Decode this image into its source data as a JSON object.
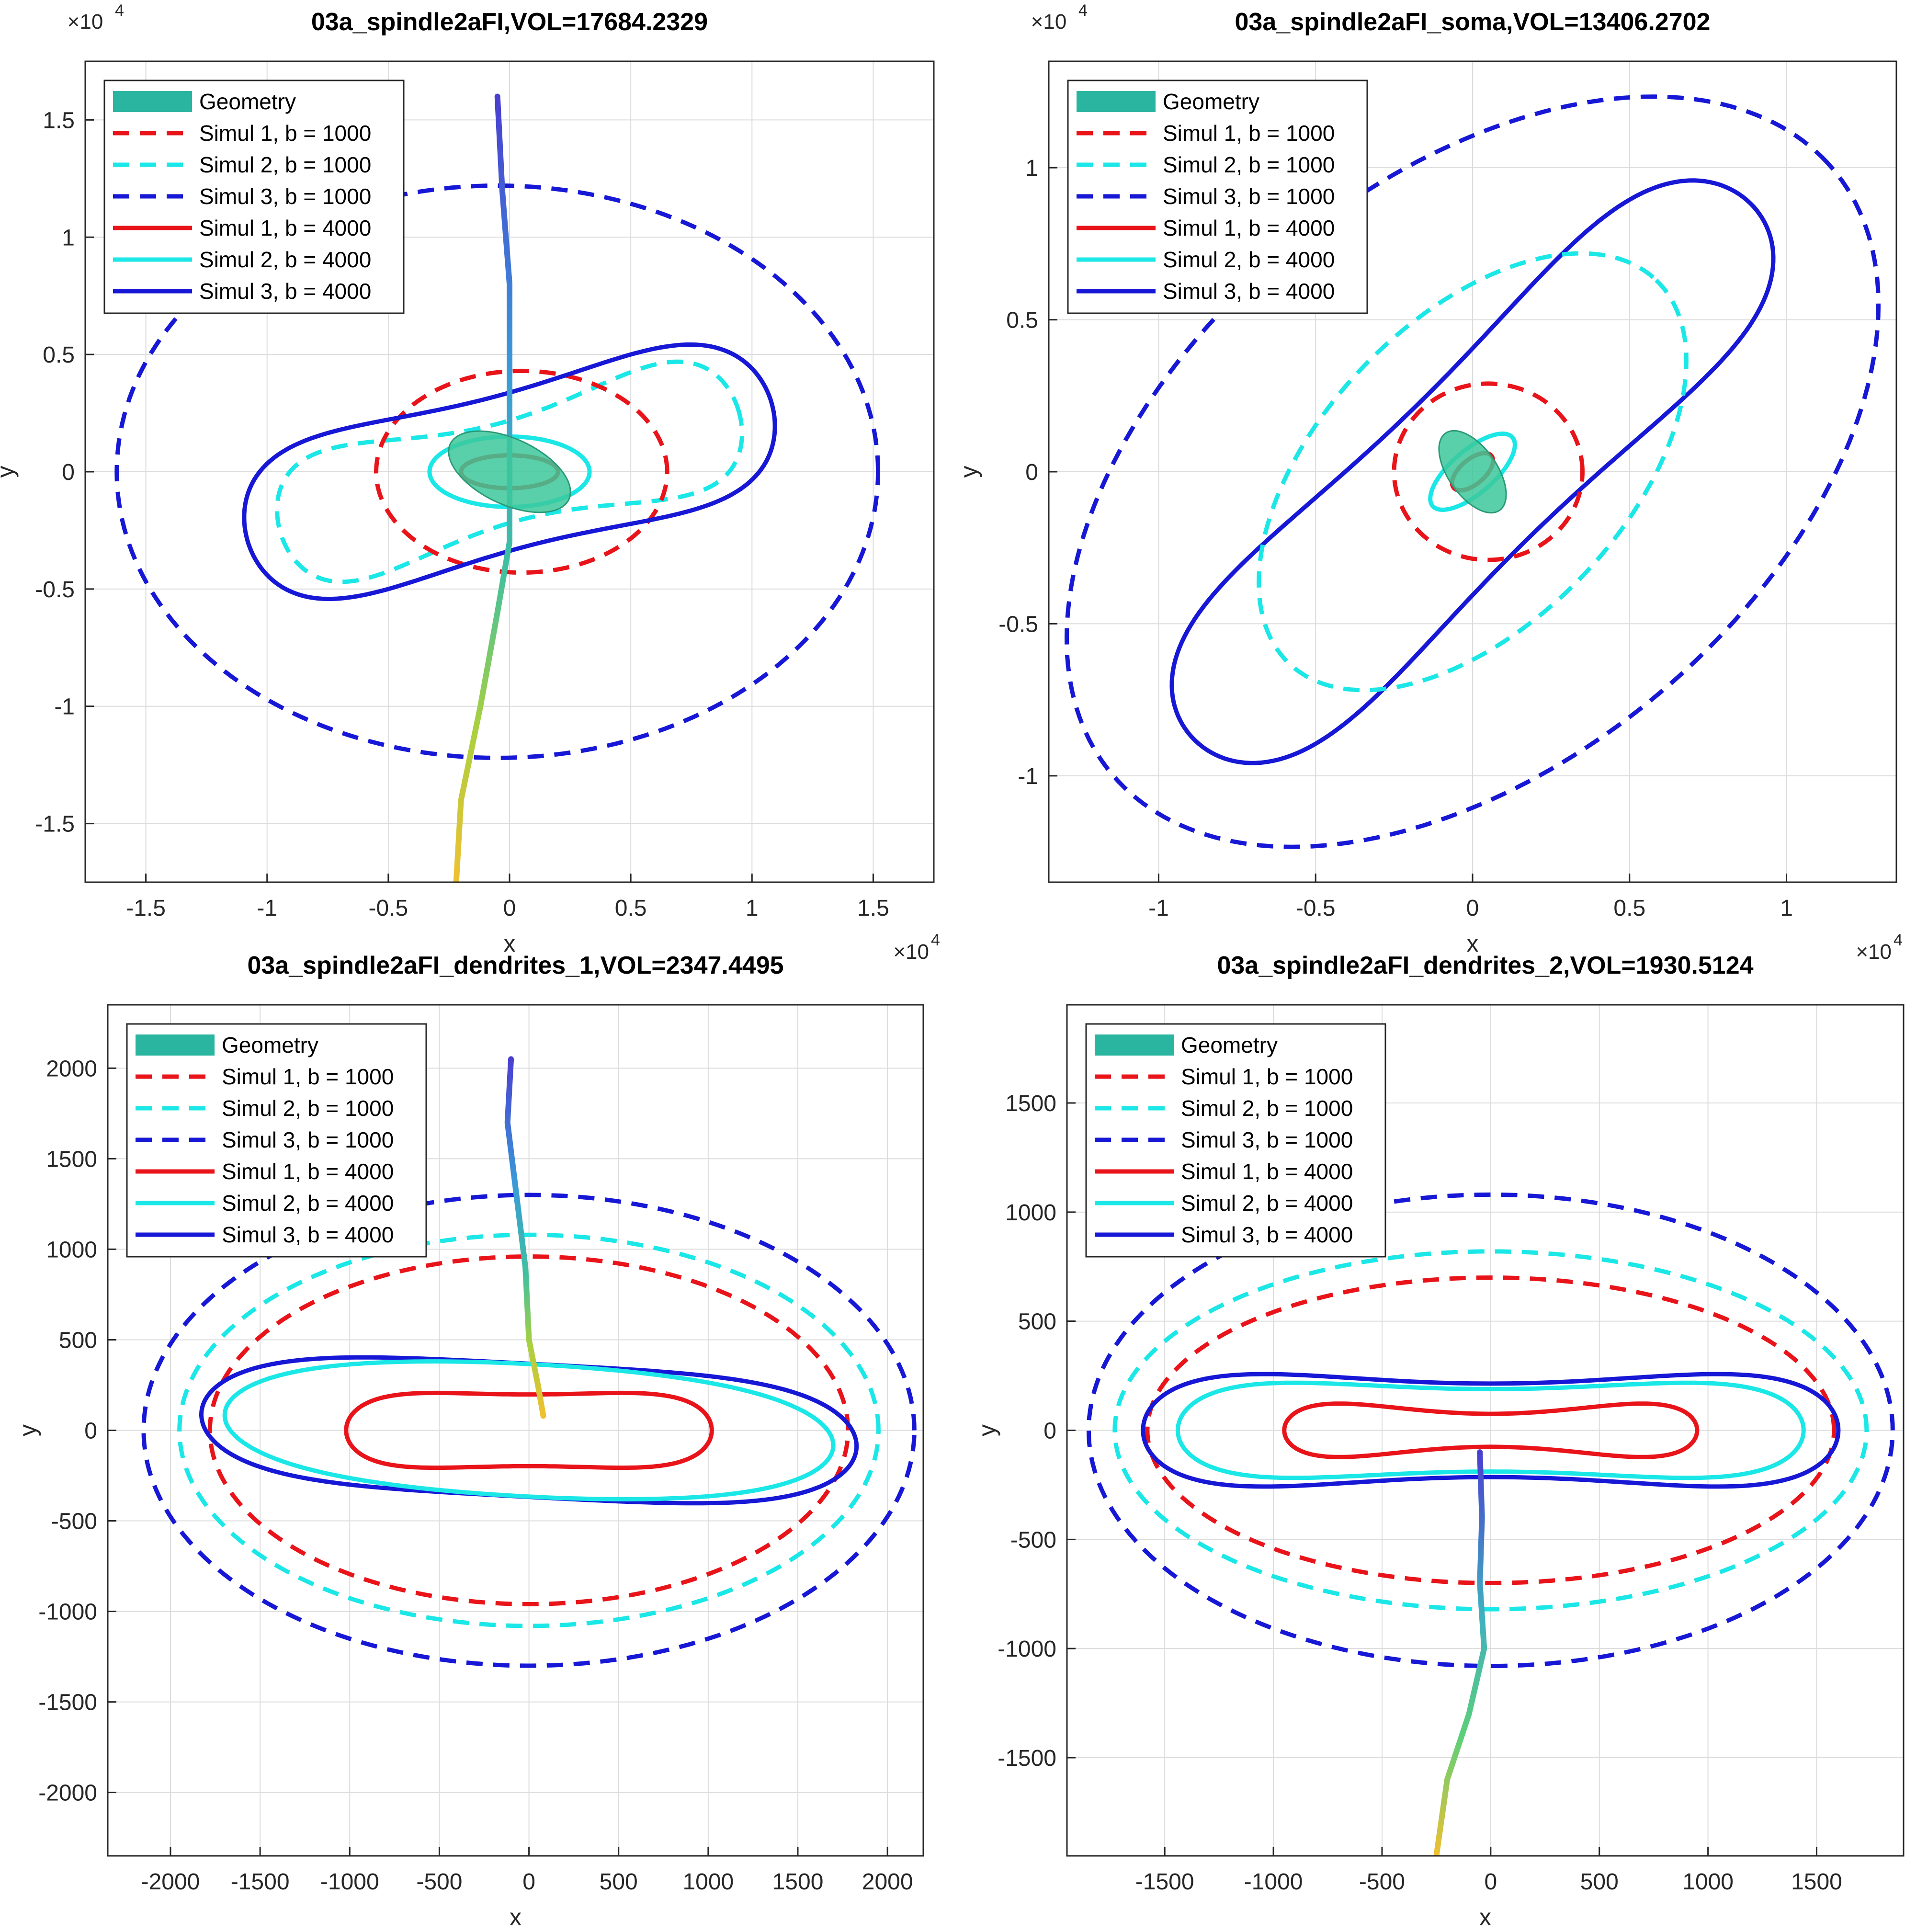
{
  "colors": {
    "simul1": "#e8141a",
    "simul2": "#1be7e7",
    "simul3": "#1717d6",
    "geometry_soma": "#3cc89a",
    "geometry_patch": "#2ab5a0"
  },
  "chart_data": [
    {
      "type": "line",
      "title": "03a_spindle2aFI,VOL=17684.2329",
      "xlabel": "x",
      "ylabel": "y",
      "xlim": [
        -17500,
        17500
      ],
      "ylim": [
        -17500,
        17500
      ],
      "xticks": [
        -15000,
        -10000,
        -5000,
        0,
        5000,
        10000,
        15000
      ],
      "xtick_labels": [
        "-1.5",
        "-1",
        "-0.5",
        "0",
        "0.5",
        "1",
        "1.5"
      ],
      "yticks": [
        -15000,
        -10000,
        -5000,
        0,
        5000,
        10000,
        15000
      ],
      "ytick_labels": [
        "-1.5",
        "-1",
        "-0.5",
        "0",
        "0.5",
        "1",
        "1.5"
      ],
      "x_exponent": "×10",
      "x_exponent_power": "4",
      "y_exponent": "×10",
      "y_exponent_power": "4",
      "grid": true,
      "legend_position": "top-left",
      "legend": [
        "Geometry",
        "Simul 1, b = 1000",
        "Simul 2, b = 1000",
        "Simul 3, b = 1000",
        "Simul 1, b = 4000",
        "Simul 2, b = 4000",
        "Simul 3, b = 4000"
      ],
      "series": [
        {
          "name": "Simul 3, b = 1000",
          "color": "simul3",
          "dashed": true,
          "shape": "ellipse",
          "cx": -500,
          "cy": 0,
          "rx": 15700,
          "ry": 12200,
          "angle": 0
        },
        {
          "name": "Simul 2, b = 1000",
          "color": "simul2",
          "dashed": true,
          "shape": "peanut",
          "cx": 0,
          "cy": 0,
          "a": 9800,
          "b": 6000,
          "neck": 0.35,
          "angle": 15
        },
        {
          "name": "Simul 1, b = 1000",
          "color": "simul1",
          "dashed": true,
          "shape": "ellipse",
          "cx": 500,
          "cy": 0,
          "rx": 6000,
          "ry": 4300,
          "angle": 0
        },
        {
          "name": "Simul 3, b = 4000",
          "color": "simul3",
          "dashed": false,
          "shape": "peanut",
          "cx": 0,
          "cy": 0,
          "a": 11200,
          "b": 6500,
          "neck": 0.5,
          "angle": 15
        },
        {
          "name": "Simul 2, b = 4000",
          "color": "simul2",
          "dashed": false,
          "shape": "ellipse",
          "cx": 0,
          "cy": 0,
          "rx": 3300,
          "ry": 1500,
          "angle": 0
        },
        {
          "name": "Simul 1, b = 4000",
          "color": "simul1",
          "dashed": false,
          "shape": "ellipse",
          "cx": 0,
          "cy": 0,
          "rx": 2000,
          "ry": 700,
          "angle": 0
        }
      ],
      "neuron": {
        "soma": {
          "cx": 0,
          "cy": 0,
          "rx": 2700,
          "ry": 1400,
          "angle": -25
        },
        "trunk": [
          [
            -500,
            16000
          ],
          [
            -300,
            12000
          ],
          [
            0,
            8000
          ],
          [
            0,
            4000
          ],
          [
            0,
            0
          ],
          [
            0,
            -3000
          ],
          [
            -500,
            -6000
          ],
          [
            -1200,
            -10000
          ],
          [
            -2000,
            -14000
          ],
          [
            -2200,
            -17500
          ]
        ]
      }
    },
    {
      "type": "line",
      "title": "03a_spindle2aFI_soma,VOL=13406.2702",
      "xlabel": "x",
      "ylabel": "y",
      "xlim": [
        -13500,
        13500
      ],
      "ylim": [
        -13500,
        13500
      ],
      "xticks": [
        -10000,
        -5000,
        0,
        5000,
        10000
      ],
      "xtick_labels": [
        "-1",
        "-0.5",
        "0",
        "0.5",
        "1"
      ],
      "yticks": [
        -10000,
        -5000,
        0,
        5000,
        10000
      ],
      "ytick_labels": [
        "-1",
        "-0.5",
        "0",
        "0.5",
        "1"
      ],
      "x_exponent": "×10",
      "x_exponent_power": "4",
      "y_exponent": "×10",
      "y_exponent_power": "4",
      "grid": true,
      "legend_position": "top-left",
      "legend": [
        "Geometry",
        "Simul 1, b = 1000",
        "Simul 2, b = 1000",
        "Simul 3, b = 1000",
        "Simul 1, b = 4000",
        "Simul 2, b = 4000",
        "Simul 3, b = 4000"
      ],
      "series": [
        {
          "name": "Simul 3, b = 1000",
          "color": "simul3",
          "dashed": true,
          "shape": "ellipse",
          "cx": 0,
          "cy": 0,
          "rx": 15200,
          "ry": 9400,
          "angle": 42
        },
        {
          "name": "Simul 3, b = 4000",
          "color": "simul3",
          "dashed": false,
          "shape": "peanut",
          "cx": 0,
          "cy": 0,
          "a": 12500,
          "b": 5600,
          "neck": 0.5,
          "angle": 45
        },
        {
          "name": "Simul 2, b = 1000",
          "color": "simul2",
          "dashed": true,
          "shape": "ellipse",
          "cx": 0,
          "cy": 0,
          "rx": 8600,
          "ry": 4900,
          "angle": 48
        },
        {
          "name": "Simul 1, b = 1000",
          "color": "simul1",
          "dashed": true,
          "shape": "ellipse",
          "cx": 500,
          "cy": 0,
          "rx": 3000,
          "ry": 2900,
          "angle": 0
        },
        {
          "name": "Simul 2, b = 4000",
          "color": "simul2",
          "dashed": false,
          "shape": "ellipse",
          "cx": 0,
          "cy": 0,
          "rx": 1700,
          "ry": 700,
          "angle": 42
        },
        {
          "name": "Simul 1, b = 4000",
          "color": "simul1",
          "dashed": false,
          "shape": "ellipse",
          "cx": 0,
          "cy": 0,
          "rx": 800,
          "ry": 400,
          "angle": 42
        }
      ],
      "neuron": {
        "soma": {
          "cx": 0,
          "cy": 0,
          "rx": 1500,
          "ry": 800,
          "angle": -55
        },
        "trunk": []
      }
    },
    {
      "type": "line",
      "title": "03a_spindle2aFI_dendrites_1,VOL=2347.4495",
      "xlabel": "x",
      "ylabel": "y",
      "xlim": [
        -2350,
        2200
      ],
      "ylim": [
        -2350,
        2350
      ],
      "xticks": [
        -2000,
        -1500,
        -1000,
        -500,
        0,
        500,
        1000,
        1500,
        2000
      ],
      "xtick_labels": [
        "-2000",
        "-1500",
        "-1000",
        "-500",
        "0",
        "500",
        "1000",
        "1500",
        "2000"
      ],
      "yticks": [
        -2000,
        -1500,
        -1000,
        -500,
        0,
        500,
        1000,
        1500,
        2000
      ],
      "ytick_labels": [
        "-2000",
        "-1500",
        "-1000",
        "-500",
        "0",
        "500",
        "1000",
        "1500",
        "2000"
      ],
      "grid": true,
      "legend_position": "top-left",
      "legend": [
        "Geometry",
        "Simul 1, b = 1000",
        "Simul 2, b = 1000",
        "Simul 3, b = 1000",
        "Simul 1, b = 4000",
        "Simul 2, b = 4000",
        "Simul 3, b = 4000"
      ],
      "series": [
        {
          "name": "Simul 3, b = 1000",
          "color": "simul3",
          "dashed": true,
          "shape": "ellipse",
          "cx": 0,
          "cy": 0,
          "rx": 2150,
          "ry": 1300,
          "angle": 0
        },
        {
          "name": "Simul 2, b = 1000",
          "color": "simul2",
          "dashed": true,
          "shape": "ellipse",
          "cx": 0,
          "cy": 0,
          "rx": 1950,
          "ry": 1080,
          "angle": 0
        },
        {
          "name": "Simul 1, b = 1000",
          "color": "simul1",
          "dashed": true,
          "shape": "ellipse",
          "cx": 0,
          "cy": 0,
          "rx": 1780,
          "ry": 960,
          "angle": 0
        },
        {
          "name": "Simul 3, b = 4000",
          "color": "simul3",
          "dashed": false,
          "shape": "peanut",
          "cx": 0,
          "cy": 0,
          "a": 1830,
          "b": 540,
          "neck": 0.68,
          "angle": -3
        },
        {
          "name": "Simul 2, b = 4000",
          "color": "simul2",
          "dashed": false,
          "shape": "peanut",
          "cx": 0,
          "cy": 0,
          "a": 1700,
          "b": 430,
          "neck": 0.85,
          "angle": -3
        },
        {
          "name": "Simul 1, b = 4000",
          "color": "simul1",
          "dashed": false,
          "shape": "peanut",
          "cx": 0,
          "cy": 0,
          "a": 1020,
          "b": 360,
          "neck": 0.55,
          "angle": 0
        }
      ],
      "neuron": {
        "soma": null,
        "trunk": [
          [
            -100,
            2050
          ],
          [
            -120,
            1700
          ],
          [
            -70,
            1300
          ],
          [
            -20,
            900
          ],
          [
            0,
            500
          ],
          [
            50,
            250
          ],
          [
            80,
            80
          ]
        ]
      }
    },
    {
      "type": "line",
      "title": "03a_spindle2aFI_dendrites_2,VOL=1930.5124",
      "xlabel": "x",
      "ylabel": "y",
      "xlim": [
        -1950,
        1900
      ],
      "ylim": [
        -1950,
        1950
      ],
      "xticks": [
        -1500,
        -1000,
        -500,
        0,
        500,
        1000,
        1500
      ],
      "xtick_labels": [
        "-1500",
        "-1000",
        "-500",
        "0",
        "500",
        "1000",
        "1500"
      ],
      "yticks": [
        -1500,
        -1000,
        -500,
        0,
        500,
        1000,
        1500
      ],
      "ytick_labels": [
        "-1500",
        "-1000",
        "-500",
        "0",
        "500",
        "1000",
        "1500"
      ],
      "grid": true,
      "legend_position": "top-left",
      "legend": [
        "Geometry",
        "Simul 1, b = 1000",
        "Simul 2, b = 1000",
        "Simul 3, b = 1000",
        "Simul 1, b = 4000",
        "Simul 2, b = 4000",
        "Simul 3, b = 4000"
      ],
      "series": [
        {
          "name": "Simul 3, b = 1000",
          "color": "simul3",
          "dashed": true,
          "shape": "ellipse",
          "cx": 0,
          "cy": 0,
          "rx": 1850,
          "ry": 1080,
          "angle": 0
        },
        {
          "name": "Simul 2, b = 1000",
          "color": "simul2",
          "dashed": true,
          "shape": "ellipse",
          "cx": 0,
          "cy": 0,
          "rx": 1730,
          "ry": 820,
          "angle": 0
        },
        {
          "name": "Simul 1, b = 1000",
          "color": "simul1",
          "dashed": true,
          "shape": "ellipse",
          "cx": 0,
          "cy": 0,
          "rx": 1580,
          "ry": 700,
          "angle": 0
        },
        {
          "name": "Simul 3, b = 4000",
          "color": "simul3",
          "dashed": false,
          "shape": "peanut",
          "cx": 0,
          "cy": 0,
          "a": 1600,
          "b": 510,
          "neck": 0.42,
          "angle": 0
        },
        {
          "name": "Simul 2, b = 4000",
          "color": "simul2",
          "dashed": false,
          "shape": "peanut",
          "cx": 0,
          "cy": 0,
          "a": 1440,
          "b": 420,
          "neck": 0.45,
          "angle": 0
        },
        {
          "name": "Simul 1, b = 4000",
          "color": "simul1",
          "dashed": false,
          "shape": "peanut",
          "cx": 0,
          "cy": 0,
          "a": 950,
          "b": 270,
          "neck": 0.28,
          "angle": 0
        }
      ],
      "neuron": {
        "soma": null,
        "trunk": [
          [
            -50,
            -100
          ],
          [
            -40,
            -400
          ],
          [
            -50,
            -700
          ],
          [
            -30,
            -1000
          ],
          [
            -100,
            -1300
          ],
          [
            -200,
            -1600
          ],
          [
            -250,
            -1950
          ]
        ]
      }
    }
  ]
}
